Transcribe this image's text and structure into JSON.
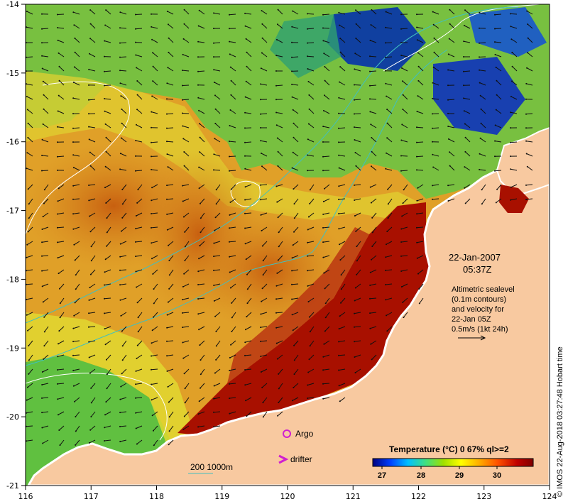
{
  "map": {
    "lon_ticks": [
      "116",
      "117",
      "118",
      "119",
      "120",
      "121",
      "122",
      "123",
      "124"
    ],
    "lat_ticks": [
      "-14",
      "-15",
      "-16",
      "-17",
      "-18",
      "-19",
      "-20",
      "-21"
    ],
    "lon_range": [
      116,
      124
    ],
    "lat_range": [
      -21,
      -14
    ],
    "colors": {
      "land": "#f8c9a0",
      "coast": "#ffffff",
      "hot": "#a01000",
      "warm": "#d0700a",
      "mid": "#e8a020",
      "yellow": "#e8d830",
      "green": "#70c040",
      "cool": "#30a060",
      "cold": "#1040a0",
      "contour": "#ffffff",
      "bathymetry": "#40c0c0",
      "argo": "#d020d0",
      "drifter": "#d020d0"
    }
  },
  "annotations": {
    "date": "22-Jan-2007",
    "time": "05:37Z",
    "altimetry_lines": [
      "Altimetric sealevel",
      "(0.1m contours)",
      "and velocity for",
      "22-Jan 05Z",
      "0.5m/s (1kt 24h)"
    ],
    "argo_label": "Argo",
    "drifter_label": "drifter",
    "bathymetry_label": "200  1000m",
    "credit": "© IMOS 22-Aug-2018 03:27:48 Hobart time"
  },
  "colorbar": {
    "title": "Temperature (°C) 0 67% ql>=2",
    "ticks": [
      "27",
      "28",
      "29",
      "30"
    ],
    "gradient": [
      "#000080",
      "#0040ff",
      "#00c0ff",
      "#40e080",
      "#a0e000",
      "#ffff00",
      "#ffb000",
      "#ff5000",
      "#c00000",
      "#800000"
    ]
  }
}
